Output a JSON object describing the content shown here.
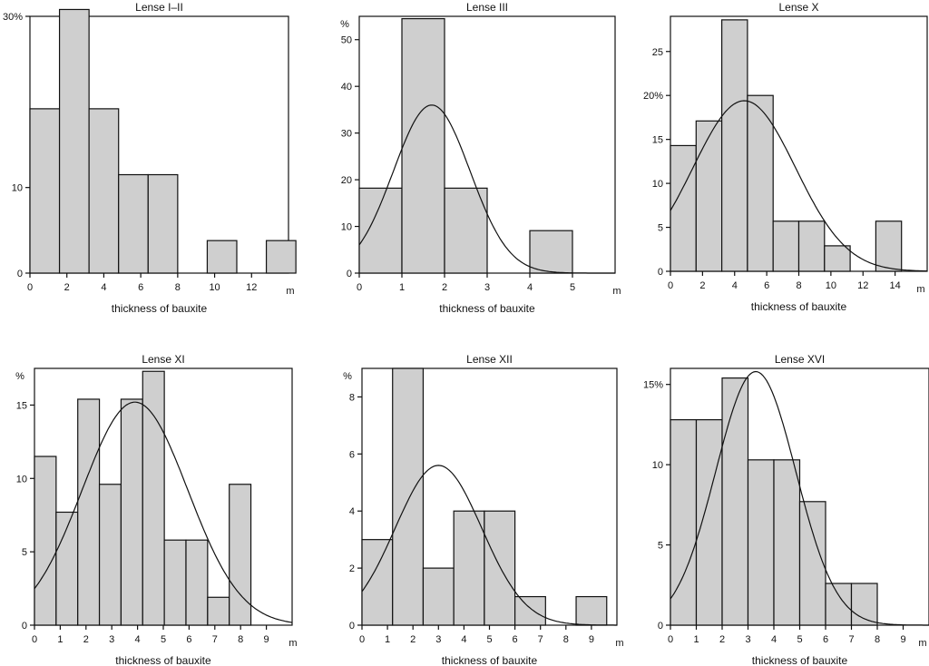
{
  "chart_data": [
    {
      "type": "bar",
      "title": "Lense I–II",
      "xlabel": "thickness of bauxite",
      "x_unit": "m",
      "y_unit": "%",
      "xlim": [
        0,
        14
      ],
      "ylim": [
        0,
        30
      ],
      "x_ticks": [
        0,
        2,
        4,
        6,
        8,
        10,
        12
      ],
      "y_ticks": [
        0,
        10,
        30
      ],
      "y_tick_labels": [
        "0",
        "10",
        "30%"
      ],
      "bin_edges": [
        0,
        1.6,
        3.2,
        4.8,
        6.4,
        8,
        9.6,
        11.2,
        12.8,
        14.4
      ],
      "values": [
        19.2,
        30.8,
        19.2,
        11.5,
        11.5,
        0,
        3.8,
        0,
        3.8
      ],
      "curve": null
    },
    {
      "type": "bar",
      "title": "Lense III",
      "xlabel": "thickness of bauxite",
      "x_unit": "m",
      "y_unit": "%",
      "xlim": [
        0,
        6
      ],
      "ylim": [
        0,
        55
      ],
      "x_ticks": [
        0,
        1,
        2,
        3,
        4,
        5
      ],
      "y_ticks": [
        0,
        10,
        20,
        30,
        40,
        50
      ],
      "y_tick_labels": [
        "0",
        "10",
        "20",
        "30",
        "40",
        "50"
      ],
      "y_unit_label": "%",
      "bin_edges": [
        0,
        1,
        2,
        3,
        4,
        5
      ],
      "values": [
        18.2,
        54.5,
        18.2,
        0,
        9.1
      ],
      "curve": {
        "mean": 1.7,
        "sd": 0.9,
        "peak": 36
      }
    },
    {
      "type": "bar",
      "title": "Lense X",
      "xlabel": "thickness of bauxite",
      "x_unit": "m",
      "y_unit": "%",
      "xlim": [
        0,
        16
      ],
      "ylim": [
        0,
        29
      ],
      "x_ticks": [
        0,
        2,
        4,
        6,
        8,
        10,
        12,
        14
      ],
      "y_ticks": [
        0,
        5,
        10,
        15,
        20,
        25
      ],
      "y_tick_labels": [
        "0",
        "5",
        "10",
        "15",
        "20%",
        "25"
      ],
      "bin_edges": [
        0,
        1.6,
        3.2,
        4.8,
        6.4,
        8,
        9.6,
        11.2,
        12.8,
        14.4
      ],
      "values": [
        14.3,
        17.1,
        28.6,
        20,
        5.7,
        5.7,
        2.9,
        0,
        5.7
      ],
      "curve": {
        "mean": 4.6,
        "sd": 3.2,
        "peak": 19.4
      }
    },
    {
      "type": "bar",
      "title": "Lense XI",
      "xlabel": "thickness of bauxite",
      "x_unit": "m",
      "y_unit": "%",
      "xlim": [
        0,
        10
      ],
      "ylim": [
        0,
        17.5
      ],
      "x_ticks": [
        0,
        1,
        2,
        3,
        4,
        5,
        6,
        7,
        8,
        9
      ],
      "y_ticks": [
        0,
        5,
        10,
        15
      ],
      "y_tick_labels": [
        "0",
        "5",
        "10",
        "15"
      ],
      "y_unit_label": "%",
      "bin_edges": [
        0,
        0.84,
        1.68,
        2.52,
        3.36,
        4.2,
        5.04,
        5.88,
        6.72,
        7.56,
        8.4
      ],
      "values": [
        11.5,
        7.7,
        15.4,
        9.6,
        15.4,
        17.3,
        5.8,
        5.8,
        1.9,
        9.6
      ],
      "curve": {
        "mean": 3.9,
        "sd": 2.05,
        "peak": 15.2
      }
    },
    {
      "type": "bar",
      "title": "Lense XII",
      "xlabel": "thickness of bauxite",
      "x_unit": "m",
      "y_unit": "%",
      "xlim": [
        0,
        10
      ],
      "ylim": [
        0,
        9
      ],
      "x_ticks": [
        0,
        1,
        2,
        3,
        4,
        5,
        6,
        7,
        8,
        9
      ],
      "y_ticks": [
        0,
        2,
        4,
        6,
        8
      ],
      "y_tick_labels": [
        "0",
        "2",
        "4",
        "6",
        "8"
      ],
      "y_unit_label": "%",
      "bin_edges": [
        0,
        1.2,
        2.4,
        3.6,
        4.8,
        6,
        7.2,
        8.4,
        9.6
      ],
      "values": [
        3,
        9,
        2,
        4,
        4,
        1,
        0,
        1
      ],
      "curve": {
        "mean": 3.0,
        "sd": 1.7,
        "peak": 5.6
      }
    },
    {
      "type": "bar",
      "title": "Lense XVI",
      "xlabel": "thickness of bauxite",
      "x_unit": "m",
      "y_unit": "%",
      "xlim": [
        0,
        10
      ],
      "ylim": [
        0,
        16
      ],
      "x_ticks": [
        0,
        1,
        2,
        3,
        4,
        5,
        6,
        7,
        8,
        9
      ],
      "y_ticks": [
        0,
        5,
        10,
        15
      ],
      "y_tick_labels": [
        "0",
        "5",
        "10",
        "15%"
      ],
      "bin_edges": [
        0,
        1,
        2,
        3,
        4,
        5,
        6,
        7,
        8
      ],
      "values": [
        12.8,
        12.8,
        15.4,
        10.3,
        10.3,
        7.7,
        2.6,
        2.6
      ],
      "curve": {
        "mean": 3.3,
        "sd": 1.55,
        "peak": 15.8
      }
    }
  ]
}
